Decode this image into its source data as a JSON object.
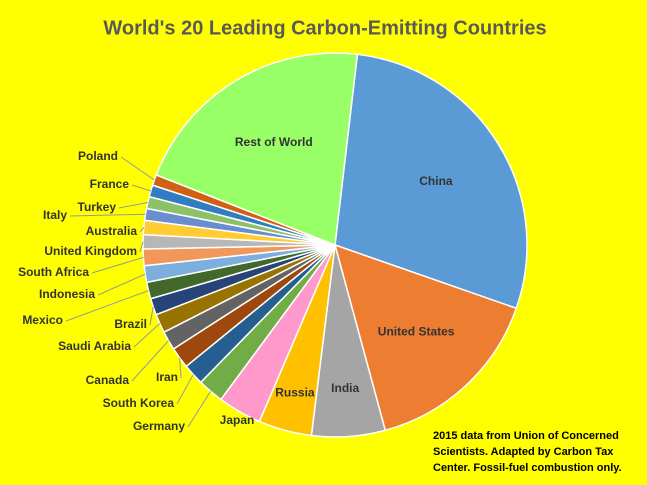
{
  "chart_data": {
    "type": "pie",
    "title": "World's 20 Leading Carbon-Emitting Countries",
    "categories": [
      "China",
      "United States",
      "India",
      "Russia",
      "Japan",
      "Germany",
      "South Korea",
      "Iran",
      "Canada",
      "Saudi Arabia",
      "Brazil",
      "Mexico",
      "Indonesia",
      "South Africa",
      "United Kingdom",
      "Australia",
      "Italy",
      "Turkey",
      "France",
      "Poland",
      "Rest of World"
    ],
    "values": [
      28.6,
      15.5,
      6.2,
      4.5,
      3.7,
      2.2,
      1.8,
      1.8,
      1.6,
      1.6,
      1.4,
      1.4,
      1.4,
      1.4,
      1.2,
      1.2,
      1.0,
      1.0,
      1.0,
      0.9,
      21
    ],
    "colors": [
      "#5b9bd5",
      "#ed7d31",
      "#a5a5a5",
      "#ffc000",
      "#ff99cc",
      "#70ad47",
      "#255e91",
      "#9e480e",
      "#636363",
      "#997300",
      "#264478",
      "#43682b",
      "#7cafdd",
      "#f1975a",
      "#b7b7b7",
      "#ffcd33",
      "#698ed0",
      "#8cc168",
      "#327dc2",
      "#d26012",
      "#99ff66"
    ],
    "note": [
      "2015 data from Union of Concerned",
      "Scientists. Adapted by Carbon Tax",
      "Center. Fossil-fuel combustion only."
    ]
  }
}
